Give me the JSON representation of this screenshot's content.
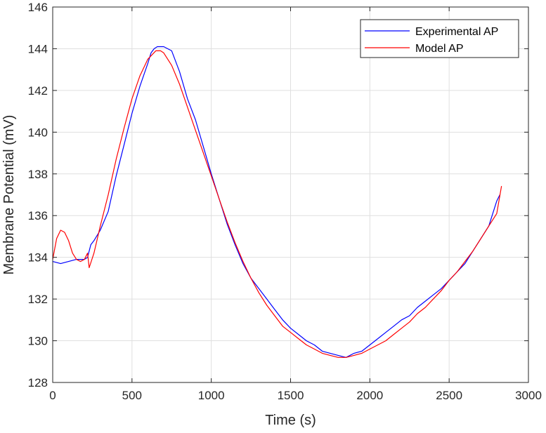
{
  "chart_data": {
    "type": "line",
    "title": "",
    "xlabel": "Time (s)",
    "ylabel": "Membrane Potential (mV)",
    "xlim": [
      0,
      3000
    ],
    "ylim": [
      128,
      146
    ],
    "xticks": [
      0,
      500,
      1000,
      1500,
      2000,
      2500,
      3000
    ],
    "xtick_labels": [
      "0",
      "500",
      "1000",
      "1500",
      "2000",
      "2500",
      "3000"
    ],
    "yticks": [
      128,
      130,
      132,
      134,
      136,
      138,
      140,
      142,
      144,
      146
    ],
    "ytick_labels": [
      "128",
      "130",
      "132",
      "134",
      "136",
      "138",
      "140",
      "142",
      "144",
      "146"
    ],
    "grid": true,
    "legend_position": "top-right",
    "series": [
      {
        "name": "Experimental AP",
        "color": "#0000ff",
        "x": [
          0,
          50,
          100,
          150,
          200,
          220,
          240,
          260,
          300,
          350,
          400,
          450,
          500,
          550,
          600,
          620,
          640,
          660,
          700,
          750,
          800,
          850,
          900,
          950,
          1000,
          1050,
          1100,
          1150,
          1200,
          1250,
          1300,
          1350,
          1400,
          1450,
          1500,
          1550,
          1600,
          1650,
          1700,
          1750,
          1800,
          1850,
          1900,
          1950,
          2000,
          2050,
          2100,
          2150,
          2200,
          2250,
          2300,
          2350,
          2400,
          2450,
          2500,
          2550,
          2600,
          2650,
          2700,
          2750,
          2800,
          2820
        ],
        "y": [
          133.8,
          133.7,
          133.8,
          133.9,
          133.9,
          134.0,
          134.6,
          134.8,
          135.3,
          136.2,
          137.9,
          139.4,
          140.9,
          142.2,
          143.3,
          143.8,
          144.0,
          144.1,
          144.1,
          143.9,
          142.9,
          141.6,
          140.6,
          139.3,
          138.0,
          136.8,
          135.6,
          134.6,
          133.7,
          133.0,
          132.5,
          132.0,
          131.5,
          131.0,
          130.6,
          130.3,
          130.0,
          129.8,
          129.5,
          129.4,
          129.3,
          129.2,
          129.4,
          129.5,
          129.8,
          130.1,
          130.4,
          130.7,
          131.0,
          131.2,
          131.6,
          131.9,
          132.2,
          132.5,
          132.9,
          133.3,
          133.7,
          134.3,
          134.9,
          135.5,
          136.7,
          137.0
        ]
      },
      {
        "name": "Model AP",
        "color": "#ff0000",
        "x": [
          0,
          25,
          50,
          75,
          100,
          125,
          150,
          175,
          200,
          220,
          230,
          260,
          300,
          350,
          400,
          450,
          500,
          550,
          600,
          650,
          680,
          700,
          750,
          800,
          850,
          900,
          950,
          1000,
          1050,
          1100,
          1150,
          1200,
          1250,
          1300,
          1350,
          1400,
          1450,
          1500,
          1550,
          1600,
          1650,
          1700,
          1750,
          1800,
          1850,
          1900,
          1950,
          2000,
          2050,
          2100,
          2150,
          2200,
          2250,
          2300,
          2350,
          2400,
          2450,
          2500,
          2550,
          2600,
          2650,
          2700,
          2750,
          2800,
          2830
        ],
        "y": [
          133.9,
          134.9,
          135.3,
          135.2,
          134.8,
          134.2,
          133.9,
          133.8,
          133.9,
          134.2,
          133.5,
          134.2,
          135.5,
          137.0,
          138.7,
          140.2,
          141.6,
          142.7,
          143.5,
          143.9,
          143.9,
          143.8,
          143.2,
          142.3,
          141.2,
          140.1,
          139.0,
          137.9,
          136.8,
          135.7,
          134.7,
          133.8,
          133.0,
          132.3,
          131.7,
          131.2,
          130.7,
          130.4,
          130.1,
          129.8,
          129.6,
          129.4,
          129.3,
          129.2,
          129.2,
          129.3,
          129.4,
          129.6,
          129.8,
          130.0,
          130.3,
          130.6,
          130.9,
          131.3,
          131.6,
          132.0,
          132.4,
          132.9,
          133.3,
          133.8,
          134.3,
          134.9,
          135.5,
          136.1,
          137.4
        ]
      }
    ]
  }
}
